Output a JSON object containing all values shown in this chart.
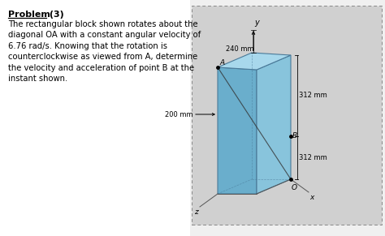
{
  "body_text_lines": [
    "The rectangular block shown rotates about the",
    "diagonal OA with a constant angular velocity of",
    "6.76 rad/s. Knowing that the rotation is",
    "counterclockwise as viewed from A, determine",
    "the velocity and acceleration of point B at the",
    "instant shown."
  ],
  "panel_bg": "#d0d0d0",
  "face_left": "#6aaecc",
  "face_right": "#88c4dc",
  "face_top": "#a8d8ec",
  "edge_color": "#4a7a99",
  "dim_200": "200 mm",
  "dim_240": "240 mm",
  "dim_312a": "312 mm",
  "dim_312b": "312 mm",
  "label_A": "A",
  "label_B": "B",
  "label_O": "O",
  "label_y": "y",
  "label_z": "z",
  "label_x": "x",
  "fig_bg": "#f0f0f0",
  "text_bg": "#ffffff"
}
